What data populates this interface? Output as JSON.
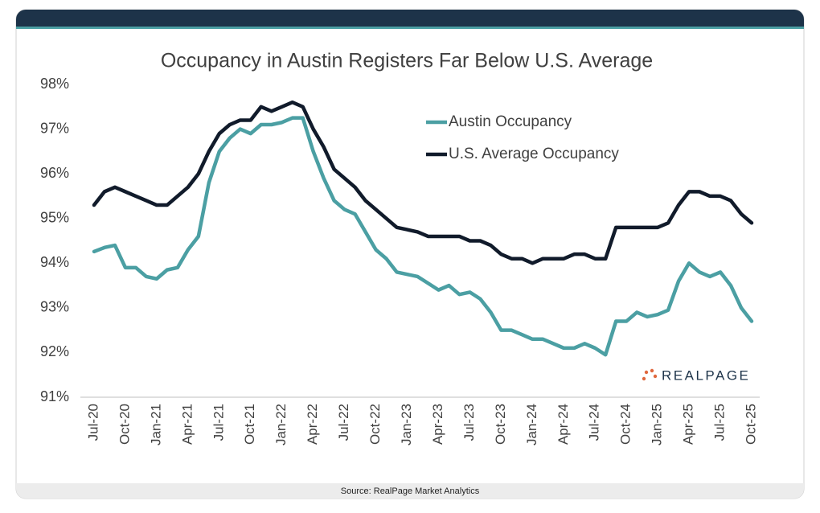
{
  "chart_data": {
    "type": "line",
    "title": "Occupancy in Austin Registers Far Below U.S. Average",
    "categories": [
      "Jul-20",
      null,
      null,
      "Oct-20",
      null,
      null,
      "Jan-21",
      null,
      null,
      "Apr-21",
      null,
      null,
      "Jul-21",
      null,
      null,
      "Oct-21",
      null,
      null,
      "Jan-22",
      null,
      null,
      "Apr-22",
      null,
      null,
      "Jul-22",
      null,
      null,
      "Oct-22",
      null,
      null,
      "Jan-23",
      null,
      null,
      "Apr-23",
      null,
      null,
      "Jul-23",
      null,
      null,
      "Oct-23",
      null,
      null,
      "Jan-24",
      null,
      null,
      "Apr-24",
      null,
      null,
      "Jul-24",
      null,
      null,
      "Oct-24",
      null,
      null,
      "Jan-25",
      null,
      null,
      "Apr-25",
      null,
      null,
      "Jul-25",
      null,
      null,
      "Oct-25"
    ],
    "series": [
      {
        "name": "Austin Occupancy",
        "color": "#4b9fa3",
        "values": [
          94.26,
          94.35,
          94.4,
          93.9,
          93.9,
          93.7,
          93.65,
          93.85,
          93.9,
          94.3,
          94.6,
          95.8,
          96.5,
          96.8,
          97.0,
          96.9,
          97.1,
          97.1,
          97.15,
          97.25,
          97.25,
          96.5,
          95.9,
          95.4,
          95.2,
          95.1,
          94.7,
          94.3,
          94.1,
          93.8,
          93.75,
          93.7,
          93.55,
          93.4,
          93.5,
          93.3,
          93.35,
          93.2,
          92.9,
          92.5,
          92.5,
          92.4,
          92.3,
          92.3,
          92.2,
          92.1,
          92.1,
          92.2,
          92.1,
          91.95,
          92.7,
          92.7,
          92.9,
          92.8,
          92.85,
          92.95,
          93.6,
          94.0,
          93.8,
          93.7,
          93.8,
          93.5,
          93.0,
          92.7
        ]
      },
      {
        "name": "U.S. Average Occupancy",
        "color": "#111b2b",
        "values": [
          95.3,
          95.6,
          95.7,
          95.6,
          95.5,
          95.4,
          95.3,
          95.3,
          95.5,
          95.7,
          96.0,
          96.5,
          96.9,
          97.1,
          97.2,
          97.2,
          97.5,
          97.4,
          97.5,
          97.6,
          97.5,
          97.0,
          96.6,
          96.1,
          95.9,
          95.7,
          95.4,
          95.2,
          95.0,
          94.8,
          94.75,
          94.7,
          94.6,
          94.6,
          94.6,
          94.6,
          94.5,
          94.5,
          94.4,
          94.2,
          94.1,
          94.1,
          94.0,
          94.1,
          94.1,
          94.1,
          94.2,
          94.2,
          94.1,
          94.1,
          94.8,
          94.8,
          94.8,
          94.8,
          94.8,
          94.9,
          95.3,
          95.6,
          95.6,
          95.5,
          95.5,
          95.4,
          95.1,
          94.9
        ]
      }
    ],
    "ylim": [
      91,
      98
    ],
    "yticks": [
      {
        "value": 91,
        "label": "91%"
      },
      {
        "value": 92,
        "label": "92%"
      },
      {
        "value": 93,
        "label": "93%"
      },
      {
        "value": 94,
        "label": "94%"
      },
      {
        "value": 95,
        "label": "95%"
      },
      {
        "value": 96,
        "label": "96%"
      },
      {
        "value": 97,
        "label": "97%"
      },
      {
        "value": 98,
        "label": "98%"
      }
    ],
    "grid": false,
    "legend": "top-right"
  },
  "branding": "REALPAGE",
  "source": "Source: RealPage Market Analytics"
}
